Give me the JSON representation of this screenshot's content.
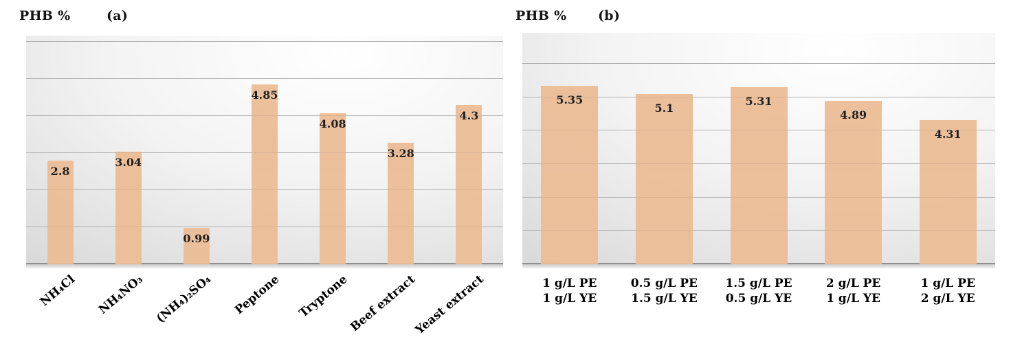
{
  "chart_data": [
    {
      "type": "bar",
      "panel_label": "(a)",
      "axis_title": "PHB %",
      "categories": [
        "NH₄Cl",
        "NH₄NO₃",
        "(NH₄)₂SO₄",
        "Peptone",
        "Tryptone",
        "Beef extract",
        "Yeast extract"
      ],
      "values": [
        2.8,
        3.04,
        0.99,
        4.85,
        4.08,
        3.28,
        4.3
      ],
      "value_labels": [
        "2.8",
        "3.04",
        "0.99",
        "4.85",
        "4.08",
        "3.28",
        "4.3"
      ],
      "xlabel": "",
      "ylabel": "PHB %",
      "ylim": [
        0,
        6.17
      ],
      "gridline_values": [
        1,
        2,
        3,
        4,
        5,
        6
      ],
      "grid": true,
      "legend_position": "none",
      "value_label_position": "inside-top",
      "category_rotation_deg": -40,
      "bar_color": "#ecbd97",
      "text_color": "#000000"
    },
    {
      "type": "bar",
      "panel_label": "(b)",
      "axis_title": "PHB %",
      "categories": [
        [
          "1 g/L PE",
          "1 g/L YE"
        ],
        [
          "0.5 g/L PE",
          "1.5 g/L YE"
        ],
        [
          "1.5 g/L PE",
          "0.5 g/L YE"
        ],
        [
          "2 g/L PE",
          "1 g/L YE"
        ],
        [
          "1 g/L PE",
          "2 g/L YE"
        ]
      ],
      "values": [
        5.35,
        5.1,
        5.31,
        4.89,
        4.31
      ],
      "value_labels": [
        "5.35",
        "5.1",
        "5.31",
        "4.89",
        "4.31"
      ],
      "xlabel": "",
      "ylabel": "PHB %",
      "ylim": [
        0,
        6.93
      ],
      "gridline_values": [
        1,
        2,
        3,
        4,
        5,
        6
      ],
      "grid": true,
      "legend_position": "none",
      "value_label_position": "inside-top",
      "category_rotation_deg": 0,
      "bar_color": "#ecbd97",
      "text_color": "#000000"
    }
  ]
}
